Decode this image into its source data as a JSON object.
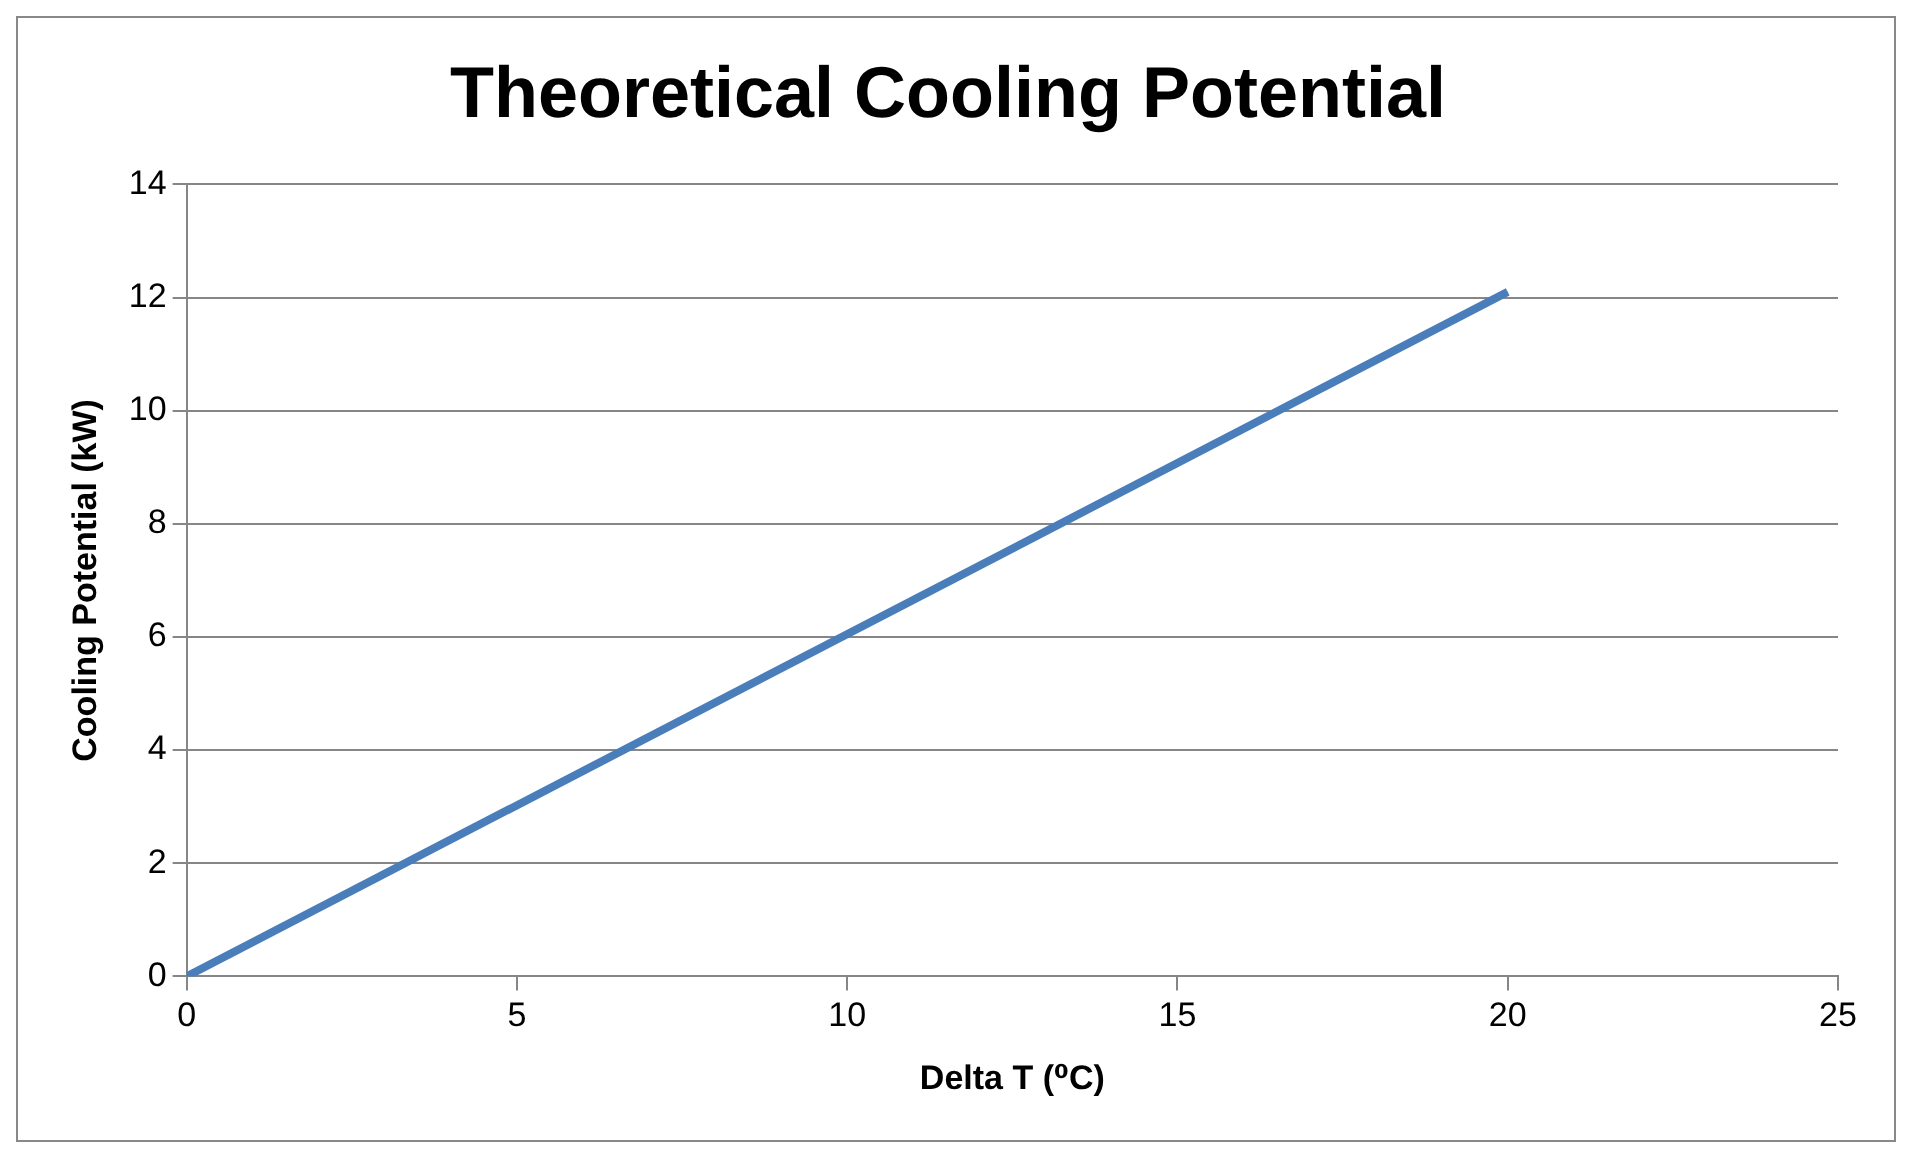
{
  "chart_data": {
    "type": "line",
    "title": "Theoretical Cooling Potential",
    "xlabel": "Delta T (⁰C)",
    "ylabel": "Cooling Potential (kW)",
    "x": [
      0,
      20
    ],
    "series": [
      {
        "color": "#4a7ebb",
        "values": [
          0,
          12.1
        ]
      }
    ],
    "xlim": [
      0,
      25
    ],
    "xticks": [
      0,
      5,
      10,
      15,
      20,
      25
    ],
    "ylim": [
      0,
      14
    ],
    "yticks": [
      0,
      2,
      4,
      6,
      8,
      10,
      12,
      14
    ],
    "grid": "y",
    "legend": false,
    "marker": "none",
    "line_style": "solid"
  }
}
